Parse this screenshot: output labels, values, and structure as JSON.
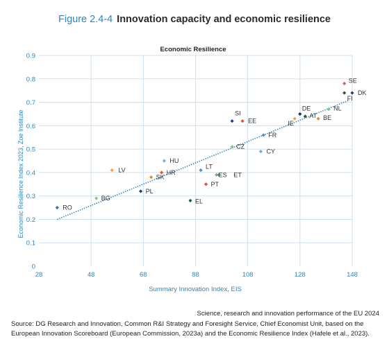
{
  "figure": {
    "number": "Figure 2.4-4",
    "title": "Innovation capacity and economic resilience"
  },
  "chart_data": {
    "type": "scatter",
    "title": "Economic Resilience",
    "xlabel": "Summary Innovation Index, EIS",
    "ylabel": "Economic Resilience Index 2023, Zoe Institute",
    "xlim": [
      28,
      148
    ],
    "ylim": [
      0,
      0.9
    ],
    "x_ticks": [
      "28",
      "48",
      "68",
      "88",
      "108",
      "128",
      "148"
    ],
    "y_ticks": [
      "0",
      "0.1",
      "0.2",
      "0.3",
      "0.4",
      "0.5",
      "0.6",
      "0.7",
      "0.8",
      "0.9"
    ],
    "grid": true,
    "trendline": {
      "style": "dotted",
      "color": "#2e7dbf",
      "from": [
        35,
        0.2
      ],
      "to": [
        147,
        0.71
      ]
    },
    "points": [
      {
        "label": "RO",
        "x": 35,
        "y": 0.25,
        "color": "#2e6fb7"
      },
      {
        "label": "BG",
        "x": 50,
        "y": 0.29,
        "color": "#7dc87d"
      },
      {
        "label": "LV",
        "x": 56,
        "y": 0.41,
        "color": "#f5a04a"
      },
      {
        "label": "PL",
        "x": 67,
        "y": 0.32,
        "color": "#1f3a8a"
      },
      {
        "label": "SK",
        "x": 71,
        "y": 0.38,
        "color": "#e88a2e"
      },
      {
        "label": "HR",
        "x": 75,
        "y": 0.4,
        "color": "#e55a2b"
      },
      {
        "label": "HU",
        "x": 76,
        "y": 0.45,
        "color": "#6ab0e0"
      },
      {
        "label": "EL",
        "x": 86,
        "y": 0.28,
        "color": "#1e5c2e"
      },
      {
        "label": "LT",
        "x": 90,
        "y": 0.41,
        "color": "#4a90d9"
      },
      {
        "label": "PT",
        "x": 92,
        "y": 0.35,
        "color": "#e0512e"
      },
      {
        "label": "ES",
        "x": 96,
        "y": 0.39,
        "color": "#999999"
      },
      {
        "label": "ET",
        "x": 97,
        "y": 0.39,
        "color": "#2e8a3e"
      },
      {
        "label": "CZ",
        "x": 102,
        "y": 0.51,
        "color": "#7dc87d"
      },
      {
        "label": "SI",
        "x": 102,
        "y": 0.62,
        "color": "#1f3a8a"
      },
      {
        "label": "EE",
        "x": 106,
        "y": 0.62,
        "color": "#e0512e"
      },
      {
        "label": "CY",
        "x": 113,
        "y": 0.49,
        "color": "#6ab0e0"
      },
      {
        "label": "FR",
        "x": 114,
        "y": 0.56,
        "color": "#4a90d9"
      },
      {
        "label": "IE",
        "x": 126,
        "y": 0.63,
        "color": "#f5a04a"
      },
      {
        "label": "DE",
        "x": 128,
        "y": 0.65,
        "color": "#1a2a5a"
      },
      {
        "label": "AT",
        "x": 130,
        "y": 0.64,
        "color": "#1e5c2e"
      },
      {
        "label": "NL",
        "x": 139,
        "y": 0.67,
        "color": "#7dc87d"
      },
      {
        "label": "BE",
        "x": 135,
        "y": 0.63,
        "color": "#e88a2e"
      },
      {
        "label": "SE",
        "x": 145,
        "y": 0.78,
        "color": "#e05a6a"
      },
      {
        "label": "FI",
        "x": 145,
        "y": 0.74,
        "color": "#1e5c2e"
      },
      {
        "label": "DK",
        "x": 148,
        "y": 0.74,
        "color": "#1f3a8a"
      }
    ],
    "colors": {
      "axis_text": "#2e86c1",
      "grid": "#cfe0ef"
    }
  },
  "footer": {
    "line1": "Science, research and innovation performance of the EU 2024",
    "source": "Source: DG Research and Innovation, Common R&I Strategy and Foresight Service, Chief Economist Unit, based on the European Innovation Scoreboard (European Commission, 2023a)  and the Economic Resilience Index (Hafele et al., 2023)."
  }
}
